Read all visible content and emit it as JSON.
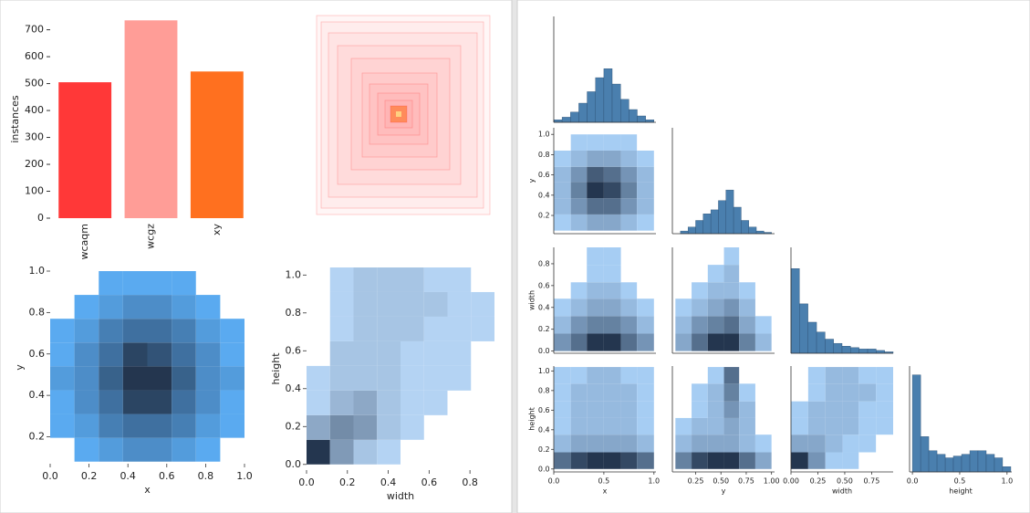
{
  "chart_data": [
    {
      "type": "bar",
      "categories": [
        "wcaqm",
        "wcgz",
        "xy"
      ],
      "values": [
        505,
        735,
        545
      ],
      "colors": [
        "#ff3838",
        "#ff9d97",
        "#ff701f"
      ],
      "ylabel": "instances",
      "ylim": [
        0,
        736
      ],
      "yticks": [
        0,
        100,
        200,
        300,
        400,
        500,
        600,
        700
      ]
    },
    {
      "type": "hist2d",
      "xlabel": "x",
      "ylabel": "y",
      "xlim": [
        0,
        1
      ],
      "ylim": [
        0.07,
        1.0
      ],
      "xticks": [
        {
          "value": 0,
          "label": "0.0"
        },
        0.2,
        0.4,
        0.6,
        0.8,
        {
          "value": 1,
          "label": "1.0"
        }
      ],
      "yticks": [
        0.2,
        0.4,
        0.6,
        0.8,
        {
          "value": 1,
          "label": "1.0"
        }
      ],
      "xbins": [
        0,
        0.125,
        0.25,
        0.375,
        0.5,
        0.625,
        0.75,
        0.875,
        1.0
      ],
      "ybins": [
        0.08,
        0.195,
        0.31,
        0.425,
        0.54,
        0.655,
        0.77,
        0.885,
        1.0
      ],
      "counts": [
        [
          0,
          1,
          2,
          3,
          3,
          2,
          1,
          0
        ],
        [
          1,
          2,
          4,
          5,
          5,
          4,
          2,
          1
        ],
        [
          1,
          3,
          5,
          8,
          8,
          5,
          3,
          1
        ],
        [
          2,
          3,
          6,
          9,
          9,
          6,
          3,
          2
        ],
        [
          1,
          3,
          5,
          8,
          7,
          5,
          3,
          1
        ],
        [
          1,
          2,
          4,
          5,
          5,
          4,
          2,
          1
        ],
        [
          0,
          1,
          2,
          3,
          3,
          2,
          1,
          0
        ],
        [
          0,
          0,
          1,
          1,
          1,
          1,
          0,
          0
        ]
      ],
      "cmap": [
        "#5aaaf0",
        "#24364f"
      ]
    },
    {
      "type": "hist2d",
      "xlabel": "width",
      "ylabel": "height",
      "xlim": [
        0,
        0.92
      ],
      "ylim": [
        -0.03,
        1.04
      ],
      "xticks": [
        {
          "value": 0,
          "label": "0.0"
        },
        0.2,
        0.4,
        0.6,
        0.8
      ],
      "yticks": [
        {
          "value": 0,
          "label": "0.0"
        },
        0.2,
        0.4,
        0.6,
        0.8,
        {
          "value": 1,
          "label": "1.0"
        }
      ],
      "xbins": [
        0,
        0.115,
        0.23,
        0.345,
        0.46,
        0.575,
        0.69,
        0.805,
        0.92
      ],
      "ybins": [
        0,
        0.13,
        0.26,
        0.39,
        0.52,
        0.65,
        0.78,
        0.91,
        1.04
      ],
      "counts": [
        [
          12,
          5,
          2,
          1,
          0,
          0,
          0,
          0
        ],
        [
          4,
          6,
          5,
          2,
          1,
          0,
          0,
          0
        ],
        [
          1,
          3,
          4,
          2,
          1,
          1,
          0,
          0
        ],
        [
          1,
          2,
          2,
          2,
          1,
          1,
          1,
          0
        ],
        [
          0,
          2,
          2,
          2,
          1,
          1,
          1,
          0
        ],
        [
          0,
          1,
          2,
          2,
          2,
          1,
          1,
          1
        ],
        [
          0,
          1,
          2,
          2,
          2,
          2,
          1,
          1
        ],
        [
          0,
          1,
          2,
          2,
          2,
          1,
          1,
          0
        ]
      ],
      "cmap": [
        "#b4d3f3",
        "#24364f"
      ]
    },
    {
      "type": "histogram",
      "xlim": [
        0,
        1.02
      ],
      "ylim": [
        0,
        83
      ],
      "color": "#4a7fae",
      "bins": [
        0,
        0.083,
        0.167,
        0.25,
        0.333,
        0.417,
        0.5,
        0.583,
        0.667,
        0.75,
        0.833,
        0.917,
        1.0
      ],
      "counts": [
        2,
        4,
        8,
        15,
        24,
        35,
        42,
        30,
        18,
        10,
        5,
        2
      ]
    },
    {
      "type": "hist2d",
      "ylabel": "y",
      "xlim": [
        0,
        1.02
      ],
      "ylim": [
        0.02,
        1.065
      ],
      "yticks": [
        0.2,
        0.4,
        0.6,
        0.8,
        {
          "value": 1,
          "label": "1.0"
        }
      ],
      "xbins": [
        0,
        0.17,
        0.33,
        0.5,
        0.67,
        0.83,
        1.0
      ],
      "ybins": [
        0.05,
        0.21,
        0.37,
        0.53,
        0.68,
        0.84,
        1.0
      ],
      "counts": [
        [
          1,
          2,
          3,
          3,
          2,
          1
        ],
        [
          2,
          4,
          6,
          6,
          4,
          2
        ],
        [
          2,
          5,
          9,
          8,
          5,
          2
        ],
        [
          2,
          4,
          7,
          6,
          4,
          2
        ],
        [
          1,
          2,
          3,
          3,
          2,
          1
        ],
        [
          0,
          1,
          1,
          1,
          1,
          0
        ]
      ],
      "cmap": [
        "#a6cdf3",
        "#24364f"
      ]
    },
    {
      "type": "histogram",
      "xlim": [
        0.02,
        1.03
      ],
      "ylim": [
        0,
        80
      ],
      "color": "#4a7fae",
      "bins": [
        0.1,
        0.175,
        0.25,
        0.325,
        0.4,
        0.475,
        0.55,
        0.625,
        0.7,
        0.775,
        0.85,
        0.925,
        1.0
      ],
      "counts": [
        2,
        5,
        10,
        15,
        18,
        25,
        33,
        20,
        10,
        5,
        2,
        1
      ]
    },
    {
      "type": "hist2d",
      "ylabel": "width",
      "xlim": [
        0,
        1.02
      ],
      "ylim": [
        -0.02,
        0.95
      ],
      "yticks": [
        {
          "value": 0,
          "label": "0.0"
        },
        0.2,
        0.4,
        0.6,
        0.8
      ],
      "xbins": [
        0,
        0.17,
        0.33,
        0.5,
        0.67,
        0.83,
        1.0
      ],
      "ybins": [
        0,
        0.16,
        0.32,
        0.48,
        0.63,
        0.79,
        0.95
      ],
      "counts": [
        [
          4,
          6,
          9,
          9,
          6,
          4
        ],
        [
          2,
          4,
          5,
          5,
          4,
          2
        ],
        [
          1,
          2,
          3,
          3,
          2,
          1
        ],
        [
          0,
          1,
          2,
          2,
          1,
          0
        ],
        [
          0,
          0,
          1,
          1,
          0,
          0
        ],
        [
          0,
          0,
          1,
          1,
          0,
          0
        ]
      ],
      "cmap": [
        "#a6cdf3",
        "#24364f"
      ]
    },
    {
      "type": "hist2d",
      "xlim": [
        0.02,
        1.03
      ],
      "ylim": [
        -0.02,
        0.95
      ],
      "xbins": [
        0.05,
        0.21,
        0.37,
        0.53,
        0.68,
        0.84,
        1.0
      ],
      "ybins": [
        0,
        0.16,
        0.32,
        0.48,
        0.63,
        0.79,
        0.95
      ],
      "counts": [
        [
          3,
          6,
          9,
          9,
          5,
          2
        ],
        [
          2,
          4,
          5,
          6,
          3,
          1
        ],
        [
          1,
          2,
          3,
          4,
          2,
          0
        ],
        [
          0,
          1,
          2,
          2,
          1,
          0
        ],
        [
          0,
          0,
          1,
          2,
          0,
          0
        ],
        [
          0,
          0,
          0,
          1,
          0,
          0
        ]
      ],
      "cmap": [
        "#a6cdf3",
        "#24364f"
      ]
    },
    {
      "type": "histogram",
      "xlim": [
        0,
        0.95
      ],
      "ylim": [
        0,
        75
      ],
      "color": "#4a7fae",
      "bins": [
        0,
        0.079,
        0.158,
        0.238,
        0.317,
        0.396,
        0.475,
        0.554,
        0.633,
        0.713,
        0.792,
        0.871,
        0.95
      ],
      "counts": [
        60,
        35,
        22,
        15,
        10,
        7,
        5,
        4,
        3,
        3,
        2,
        1
      ]
    },
    {
      "type": "hist2d",
      "xlabel": "x",
      "ylabel": "height",
      "xlim": [
        0,
        1.02
      ],
      "ylim": [
        -0.03,
        1.05
      ],
      "xticks": [
        {
          "value": 0,
          "label": "0.0"
        },
        0.5,
        {
          "value": 1,
          "label": "1.0"
        }
      ],
      "yticks": [
        {
          "value": 0,
          "label": "0.0"
        },
        0.2,
        0.4,
        0.6,
        0.8,
        {
          "value": 1,
          "label": "1.0"
        }
      ],
      "xbins": [
        0,
        0.17,
        0.33,
        0.5,
        0.67,
        0.83,
        1.0
      ],
      "ybins": [
        0,
        0.17,
        0.35,
        0.52,
        0.69,
        0.87,
        1.04
      ],
      "counts": [
        [
          6,
          8,
          9,
          9,
          8,
          6
        ],
        [
          2,
          3,
          3,
          3,
          3,
          2
        ],
        [
          1,
          2,
          2,
          2,
          2,
          1
        ],
        [
          1,
          2,
          2,
          2,
          2,
          1
        ],
        [
          1,
          2,
          2,
          2,
          2,
          1
        ],
        [
          1,
          1,
          2,
          2,
          1,
          1
        ]
      ],
      "cmap": [
        "#a6cdf3",
        "#24364f"
      ]
    },
    {
      "type": "hist2d",
      "xlabel": "y",
      "xlim": [
        0.02,
        1.03
      ],
      "ylim": [
        -0.03,
        1.05
      ],
      "xticks": [
        0.25,
        {
          "value": 0.5,
          "label": "0.50"
        },
        0.75,
        {
          "value": 1,
          "label": "1.00"
        }
      ],
      "xbins": [
        0.05,
        0.21,
        0.37,
        0.53,
        0.68,
        0.84,
        1.0
      ],
      "ybins": [
        0,
        0.17,
        0.35,
        0.52,
        0.69,
        0.87,
        1.04
      ],
      "counts": [
        [
          5,
          8,
          9,
          9,
          6,
          3
        ],
        [
          2,
          3,
          3,
          3,
          2,
          1
        ],
        [
          1,
          2,
          2,
          3,
          2,
          0
        ],
        [
          0,
          1,
          2,
          4,
          2,
          0
        ],
        [
          0,
          1,
          2,
          5,
          1,
          0
        ],
        [
          0,
          0,
          1,
          6,
          0,
          0
        ]
      ],
      "cmap": [
        "#a6cdf3",
        "#24364f"
      ]
    },
    {
      "type": "hist2d",
      "xlabel": "width",
      "xlim": [
        0,
        0.95
      ],
      "ylim": [
        -0.03,
        1.05
      ],
      "xticks": [
        {
          "value": 0,
          "label": "0.00"
        },
        0.25,
        {
          "value": 0.5,
          "label": "0.50"
        },
        0.75
      ],
      "xbins": [
        0,
        0.16,
        0.32,
        0.48,
        0.63,
        0.79,
        0.95
      ],
      "ybins": [
        0,
        0.17,
        0.35,
        0.52,
        0.69,
        0.87,
        1.04
      ],
      "counts": [
        [
          9,
          4,
          1,
          1,
          0,
          0
        ],
        [
          3,
          3,
          2,
          1,
          1,
          0
        ],
        [
          1,
          2,
          2,
          2,
          1,
          1
        ],
        [
          1,
          2,
          2,
          2,
          1,
          1
        ],
        [
          0,
          1,
          2,
          2,
          2,
          1
        ],
        [
          0,
          1,
          2,
          2,
          1,
          1
        ]
      ],
      "cmap": [
        "#a6cdf3",
        "#24364f"
      ]
    },
    {
      "type": "histogram",
      "xlabel": "height",
      "xlim": [
        -0.03,
        1.05
      ],
      "ylim": [
        0,
        60
      ],
      "color": "#4a7fae",
      "xticks": [
        {
          "value": 0,
          "label": "0.0"
        },
        0.5,
        {
          "value": 1,
          "label": "1.0"
        }
      ],
      "bins": [
        0,
        0.087,
        0.173,
        0.26,
        0.347,
        0.433,
        0.52,
        0.607,
        0.693,
        0.78,
        0.867,
        0.953,
        1.04
      ],
      "counts": [
        55,
        20,
        12,
        10,
        8,
        9,
        10,
        12,
        12,
        10,
        8,
        3
      ]
    }
  ]
}
